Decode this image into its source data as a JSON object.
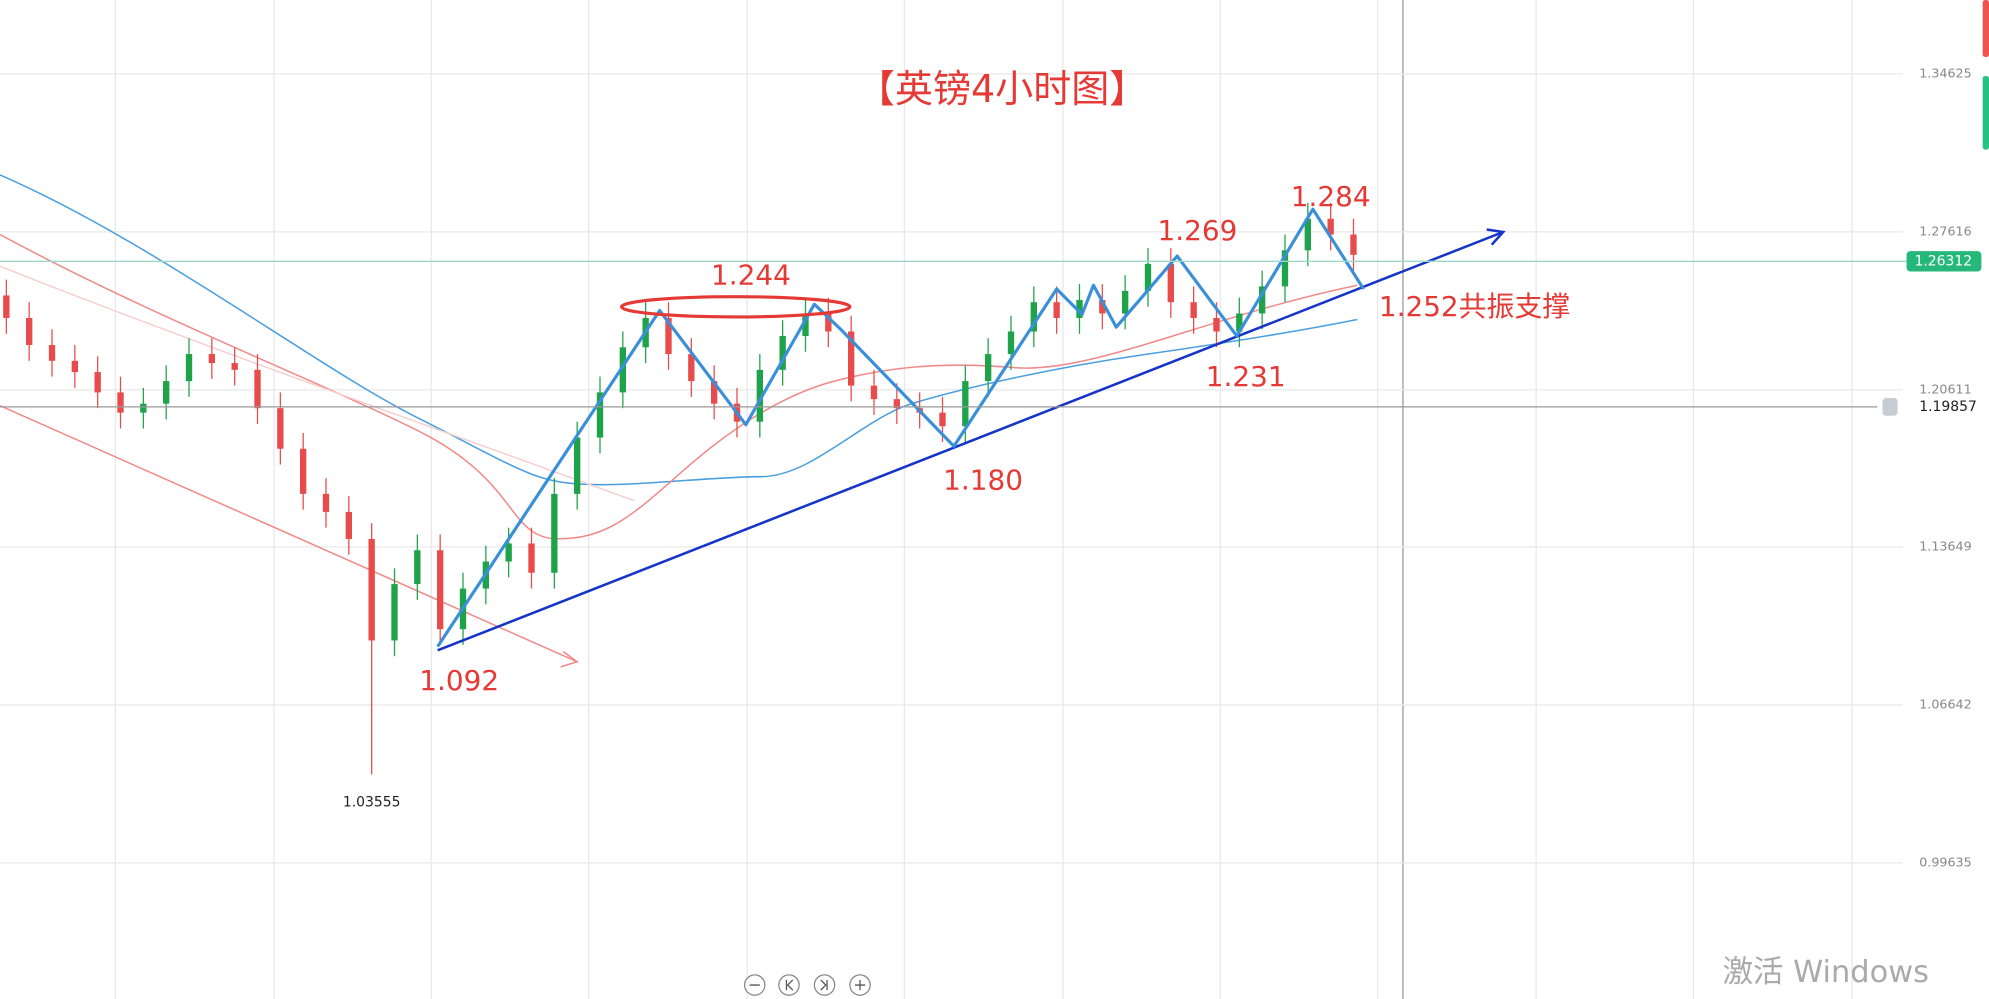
{
  "chart_data": {
    "type": "candlestick",
    "title": "【英镑4小时图】",
    "open": [
      1.248,
      1.238,
      1.226,
      1.219,
      1.214,
      1.205,
      1.196,
      1.2,
      1.21,
      1.222,
      1.218,
      1.215,
      1.198,
      1.18,
      1.16,
      1.152,
      1.14,
      1.095,
      1.12,
      1.135,
      1.1,
      1.118,
      1.13,
      1.138,
      1.125,
      1.16,
      1.185,
      1.205,
      1.225,
      1.238,
      1.222,
      1.21,
      1.2,
      1.192,
      1.215,
      1.23,
      1.24,
      1.232,
      1.208,
      1.202,
      1.198,
      1.196,
      1.19,
      1.21,
      1.222,
      1.232,
      1.245,
      1.238,
      1.246,
      1.24,
      1.25,
      1.262,
      1.245,
      1.238,
      1.232,
      1.24,
      1.252,
      1.268,
      1.282,
      1.275
    ],
    "high": [
      1.255,
      1.245,
      1.233,
      1.226,
      1.221,
      1.212,
      1.207,
      1.217,
      1.229,
      1.229,
      1.225,
      1.222,
      1.205,
      1.187,
      1.167,
      1.159,
      1.147,
      1.127,
      1.142,
      1.142,
      1.125,
      1.137,
      1.145,
      1.145,
      1.167,
      1.192,
      1.212,
      1.232,
      1.245,
      1.245,
      1.229,
      1.217,
      1.207,
      1.222,
      1.237,
      1.247,
      1.247,
      1.239,
      1.215,
      1.209,
      1.205,
      1.203,
      1.217,
      1.229,
      1.239,
      1.252,
      1.252,
      1.253,
      1.253,
      1.257,
      1.269,
      1.269,
      1.252,
      1.245,
      1.247,
      1.259,
      1.275,
      1.289,
      1.289,
      1.282
    ],
    "low": [
      1.231,
      1.219,
      1.212,
      1.207,
      1.198,
      1.189,
      1.189,
      1.193,
      1.203,
      1.211,
      1.208,
      1.191,
      1.173,
      1.153,
      1.145,
      1.133,
      1.03555,
      1.088,
      1.113,
      1.093,
      1.093,
      1.111,
      1.123,
      1.118,
      1.118,
      1.153,
      1.178,
      1.198,
      1.218,
      1.215,
      1.203,
      1.193,
      1.185,
      1.185,
      1.208,
      1.223,
      1.225,
      1.201,
      1.195,
      1.191,
      1.189,
      1.183,
      1.183,
      1.203,
      1.215,
      1.225,
      1.231,
      1.231,
      1.233,
      1.233,
      1.243,
      1.238,
      1.231,
      1.225,
      1.225,
      1.233,
      1.245,
      1.261,
      1.268,
      1.259
    ],
    "close": [
      1.238,
      1.226,
      1.219,
      1.214,
      1.205,
      1.196,
      1.2,
      1.21,
      1.222,
      1.218,
      1.215,
      1.198,
      1.18,
      1.16,
      1.152,
      1.14,
      1.095,
      1.12,
      1.135,
      1.1,
      1.118,
      1.13,
      1.138,
      1.125,
      1.16,
      1.185,
      1.205,
      1.225,
      1.238,
      1.222,
      1.21,
      1.2,
      1.192,
      1.215,
      1.23,
      1.24,
      1.232,
      1.208,
      1.202,
      1.198,
      1.196,
      1.19,
      1.21,
      1.222,
      1.232,
      1.245,
      1.238,
      1.246,
      1.24,
      1.25,
      1.262,
      1.245,
      1.238,
      1.232,
      1.24,
      1.252,
      1.268,
      1.282,
      1.275,
      1.266
    ],
    "up_color": "#1fa34a",
    "down_color": "#e84b4b",
    "ylim": [
      0.936,
      1.379
    ],
    "yticks": [
      1.34625,
      1.27616,
      1.20611,
      1.13649,
      1.06642,
      0.99635
    ],
    "grid": true,
    "last_price": 1.26312,
    "crosshair_price": 1.19857,
    "low_marker": 1.03555,
    "annotations": [
      "1.244",
      "1.269",
      "1.284",
      "1.252共振支撑",
      "1.231",
      "1.180",
      "1.092"
    ]
  },
  "watermark": "激活 Windows"
}
